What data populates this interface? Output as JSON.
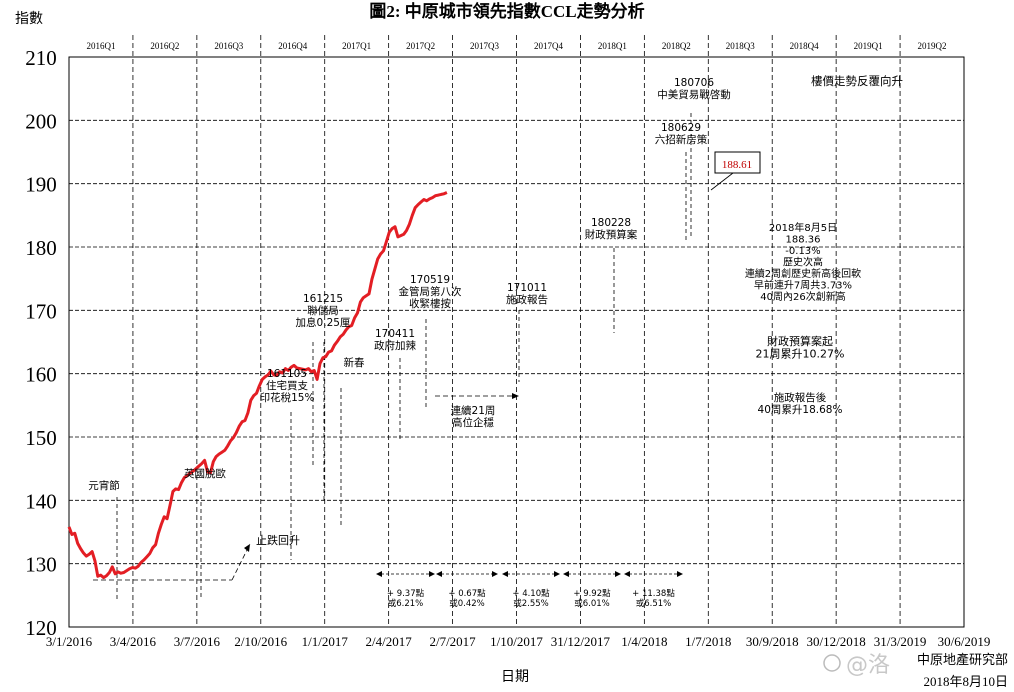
{
  "chart_data": {
    "type": "line",
    "title": "圖2: 中原城市領先指數CCL走勢分析",
    "ylabel": "指數",
    "xlabel": "日期",
    "ylim": [
      120,
      210
    ],
    "yticks": [
      120,
      130,
      140,
      150,
      160,
      170,
      180,
      190,
      200,
      210
    ],
    "xticks": [
      "3/1/2016",
      "3/4/2016",
      "3/7/2016",
      "2/10/2016",
      "1/1/2017",
      "2/4/2017",
      "2/7/2017",
      "1/10/2017",
      "31/12/2017",
      "1/4/2018",
      "1/7/2018",
      "30/9/2018",
      "30/12/2018",
      "31/3/2019",
      "30/6/2019"
    ],
    "quarters": [
      "2016Q1",
      "2016Q2",
      "2016Q3",
      "2016Q4",
      "2017Q1",
      "2017Q2",
      "2017Q3",
      "2017Q4",
      "2018Q1",
      "2018Q2",
      "2018Q3",
      "2018Q4",
      "2019Q1",
      "2019Q2"
    ],
    "grid": true,
    "series": [
      {
        "color": "#e31e24",
        "x": [
          0,
          1,
          2,
          3,
          4,
          5,
          6,
          7,
          8,
          9,
          10,
          11,
          12,
          13,
          14,
          15,
          16,
          17,
          18,
          19,
          20,
          21,
          22,
          23,
          24,
          25,
          26,
          27,
          28,
          29,
          30,
          31,
          32,
          33,
          34,
          35,
          36,
          37,
          38,
          39,
          40,
          41,
          42,
          43,
          44,
          45,
          46,
          47,
          48,
          49,
          50,
          51,
          52,
          53,
          54,
          55,
          56,
          57,
          58,
          59,
          60,
          61,
          62,
          63,
          64,
          65,
          66,
          67,
          68,
          69,
          70,
          71,
          72,
          73,
          74,
          75,
          76,
          77,
          78,
          79,
          80,
          81,
          82,
          83,
          84,
          85,
          86,
          87,
          88,
          89,
          90,
          91,
          92,
          93,
          94,
          95,
          96,
          97,
          98,
          99,
          100,
          101,
          102,
          103,
          104,
          105,
          106,
          107,
          108,
          109,
          110,
          111,
          112,
          113,
          114,
          115,
          116,
          117,
          118,
          119,
          120,
          121,
          122,
          123,
          124,
          125,
          126,
          127,
          128,
          129,
          130,
          131
        ],
        "values": [
          135.8,
          134.6,
          134.8,
          133.2,
          132.4,
          131.7,
          131.2,
          131.5,
          131.9,
          130.4,
          128.0,
          128.2,
          127.8,
          128.1,
          128.6,
          129.5,
          128.4,
          128.7,
          128.5,
          128.6,
          128.9,
          129.2,
          129.4,
          129.3,
          129.6,
          130.2,
          130.6,
          131.1,
          131.6,
          132.5,
          133.0,
          134.8,
          136.2,
          137.4,
          137.1,
          139.2,
          141.4,
          141.8,
          141.7,
          142.8,
          143.6,
          143.9,
          144.3,
          144.6,
          145.0,
          145.4,
          145.8,
          146.3,
          144.5,
          144.3,
          146.1,
          146.9,
          147.3,
          147.6,
          147.9,
          148.6,
          149.4,
          149.9,
          150.7,
          151.7,
          152.4,
          152.6,
          153.8,
          155.8,
          156.5,
          156.9,
          158.1,
          159.1,
          159.5,
          159.8,
          160.4,
          159.8,
          159.7,
          160.3,
          160.1,
          160.8,
          160.5,
          161.0,
          161.3,
          160.9,
          160.8,
          160.7,
          160.6,
          160.8,
          160.3,
          160.5,
          159.1,
          161.6,
          162.5,
          162.7,
          163.4,
          163.6,
          164.5,
          165.1,
          165.8,
          166.2,
          166.9,
          167.4,
          167.6,
          168.8,
          169.6,
          171.3,
          172.0,
          172.3,
          172.6,
          174.9,
          176.5,
          178.1,
          178.9,
          179.4,
          180.8,
          182.3,
          182.9,
          183.2,
          181.6,
          181.8,
          182.0,
          182.6,
          183.6,
          185.0,
          186.2,
          186.7,
          187.1,
          187.5,
          187.3,
          187.6,
          187.8,
          188.1,
          188.2,
          188.3,
          188.4,
          188.6
        ]
      }
    ],
    "annotations": {
      "events": [
        {
          "label": "元宵節",
          "date": "2016-02-22"
        },
        {
          "label": "英國脫歐",
          "date": "2016-06-24"
        },
        {
          "label": "161105\n住宅買支\n印花稅15%",
          "date": "2016-11-05"
        },
        {
          "label": "161215\n聯儲局\n加息0.25厘",
          "date": "2016-12-15"
        },
        {
          "label": "新春",
          "date": "2017-01-28"
        },
        {
          "label": "170411\n政府加辣",
          "date": "2017-04-11"
        },
        {
          "label": "170519\n金管局第八次\n收緊樓按",
          "date": "2017-05-19"
        },
        {
          "label": "171011\n施政報告",
          "date": "2017-10-11"
        },
        {
          "label": "180228\n財政預算案",
          "date": "2018-02-28"
        },
        {
          "label": "180629\n六招新房策",
          "date": "2018-06-29"
        },
        {
          "label": "180706\n中美貿易戰啓動",
          "date": "2018-07-06"
        }
      ],
      "trend_note": "樓價走勢反覆向升",
      "latest_value": "188.61",
      "stats_block": "2018年8月5日\n188.36\n-0.13%\n歷史次高\n連續2周創歷史新高後回軟\n早前連升7周共3.73%\n40周內26次創新高",
      "budget_note": "財政預算案起\n21周累升10.27%",
      "policy_note": "施政報告後\n40周累升18.68%",
      "stopfall": "止跌回升",
      "plateau_note": "連續21周\n高位企穩",
      "quarter_gains": [
        "+ 9.37點\n或6.21%",
        "+ 0.67點\n或0.42%",
        "+ 4.10點\n或2.55%",
        "+ 9.92點\n或6.01%",
        "+ 11.38點\n或6.51%"
      ]
    }
  },
  "footer": {
    "watermark": "@洛",
    "source": "中原地產研究部",
    "date": "2018年8月10日"
  }
}
